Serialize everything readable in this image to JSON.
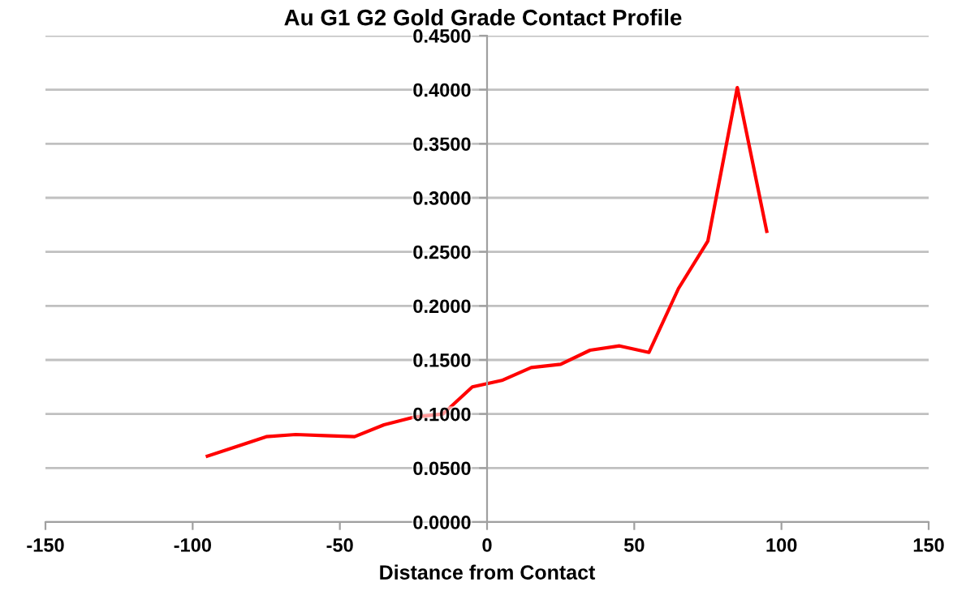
{
  "chart_data": {
    "type": "line",
    "title": "Au G1 G2 Gold Grade Contact Profile",
    "xlabel": "Distance from Contact",
    "x": [
      -95,
      -85,
      -75,
      -65,
      -55,
      -45,
      -35,
      -25,
      -15,
      -5,
      5,
      15,
      25,
      35,
      45,
      55,
      65,
      75,
      85,
      95
    ],
    "series": [
      {
        "color": "#ff0000",
        "values": [
          0.061,
          0.07,
          0.079,
          0.081,
          0.08,
          0.079,
          0.09,
          0.097,
          0.1,
          0.125,
          0.131,
          0.143,
          0.146,
          0.159,
          0.163,
          0.157,
          0.216,
          0.26,
          0.402,
          0.269
        ]
      }
    ],
    "xlim": [
      -150,
      150
    ],
    "xticks": [
      -150,
      -100,
      -50,
      0,
      50,
      100,
      150
    ],
    "ylim": [
      0,
      0.45
    ],
    "yticks": [
      {
        "value": 0,
        "label": "0.0000"
      },
      {
        "value": 0.05,
        "label": "0.0500"
      },
      {
        "value": 0.1,
        "label": "0.1000"
      },
      {
        "value": 0.15,
        "label": "0.1500"
      },
      {
        "value": 0.2,
        "label": "0.2000"
      },
      {
        "value": 0.25,
        "label": "0.2500"
      },
      {
        "value": 0.3,
        "label": "0.3000"
      },
      {
        "value": 0.35,
        "label": "0.3500"
      },
      {
        "value": 0.4,
        "label": "0.4000"
      },
      {
        "value": 0.45,
        "label": "0.4500"
      }
    ],
    "grid": "y",
    "marker": "none",
    "line_style": "solid"
  }
}
